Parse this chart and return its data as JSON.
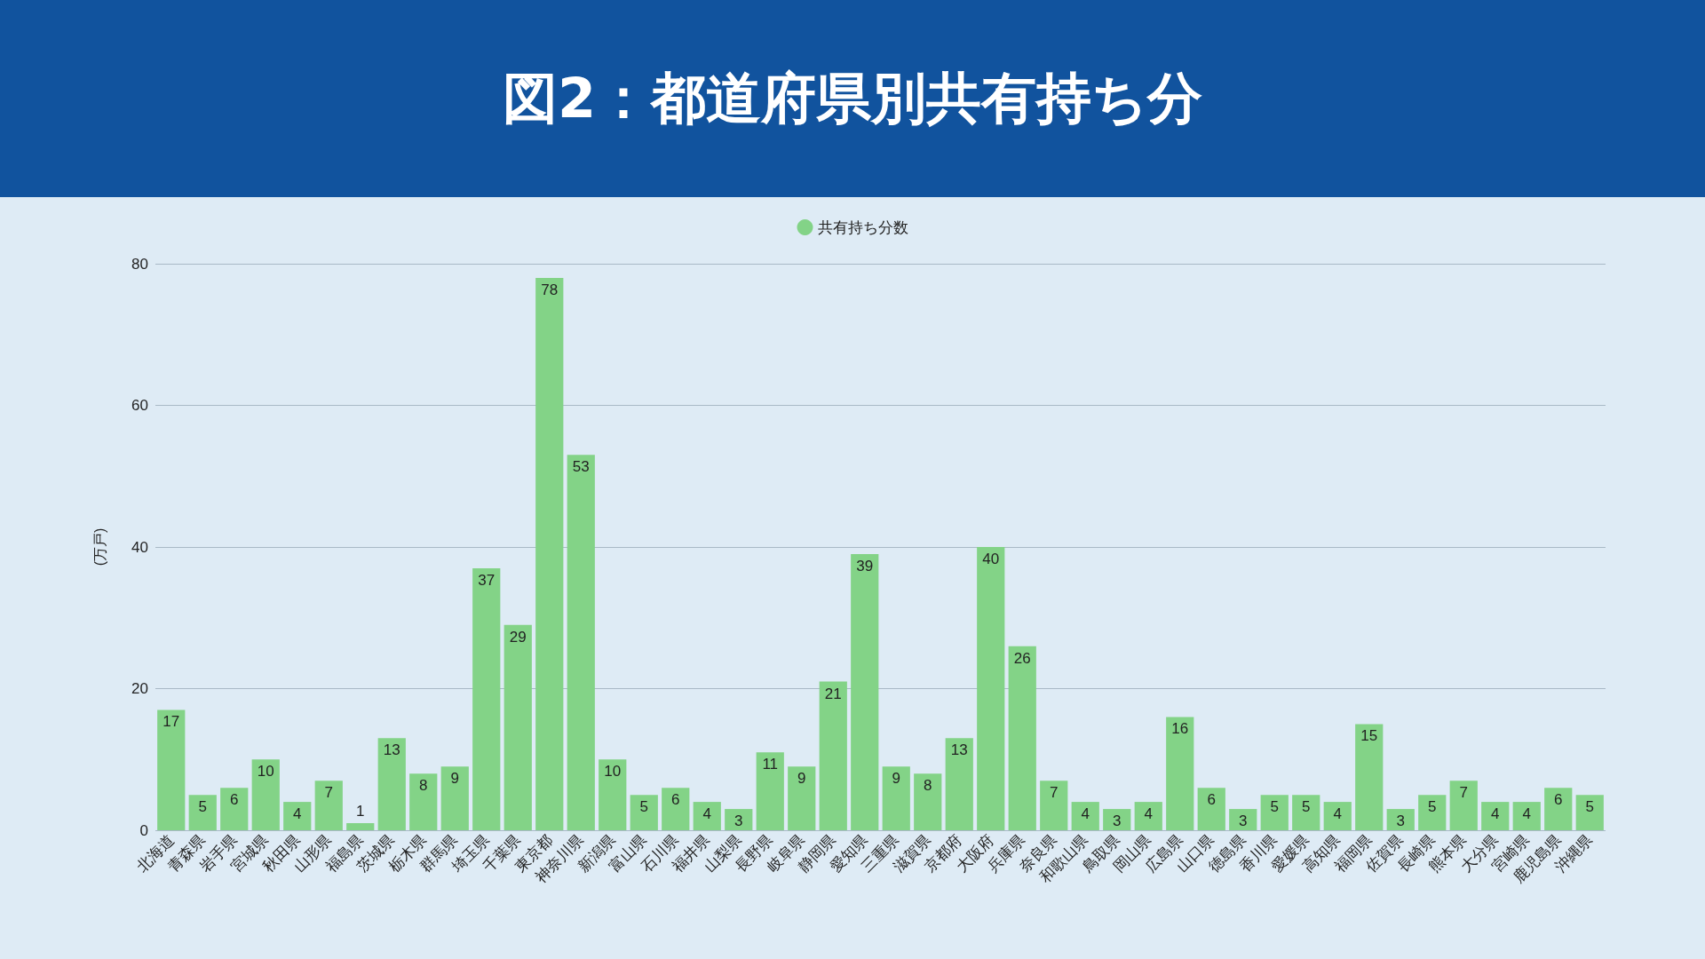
{
  "chart_data": {
    "type": "bar",
    "title": "図2：都道府県別共有持ち分",
    "ylabel": "(万戸)",
    "categories": [
      "北海道",
      "青森県",
      "岩手県",
      "宮城県",
      "秋田県",
      "山形県",
      "福島県",
      "茨城県",
      "栃木県",
      "群馬県",
      "埼玉県",
      "千葉県",
      "東京都",
      "神奈川県",
      "新潟県",
      "富山県",
      "石川県",
      "福井県",
      "山梨県",
      "長野県",
      "岐阜県",
      "静岡県",
      "愛知県",
      "三重県",
      "滋賀県",
      "京都府",
      "大阪府",
      "兵庫県",
      "奈良県",
      "和歌山県",
      "鳥取県",
      "岡山県",
      "広島県",
      "山口県",
      "徳島県",
      "香川県",
      "愛媛県",
      "高知県",
      "福岡県",
      "佐賀県",
      "長崎県",
      "熊本県",
      "大分県",
      "宮崎県",
      "鹿児島県",
      "沖縄県"
    ],
    "series": [
      {
        "name": "共有持ち分数",
        "color": "#83d387",
        "values": [
          17,
          5,
          6,
          10,
          4,
          7,
          1,
          13,
          8,
          9,
          37,
          29,
          78,
          53,
          10,
          5,
          6,
          4,
          3,
          11,
          9,
          21,
          39,
          9,
          8,
          13,
          40,
          26,
          7,
          4,
          3,
          4,
          16,
          6,
          3,
          5,
          5,
          4,
          15,
          3,
          5,
          7,
          4,
          4,
          6,
          5
        ]
      }
    ],
    "ylim": [
      0,
      80
    ],
    "yticks": [
      0,
      20,
      40,
      60,
      80
    ],
    "grid": "y",
    "legend": "top",
    "data_labels": true
  }
}
